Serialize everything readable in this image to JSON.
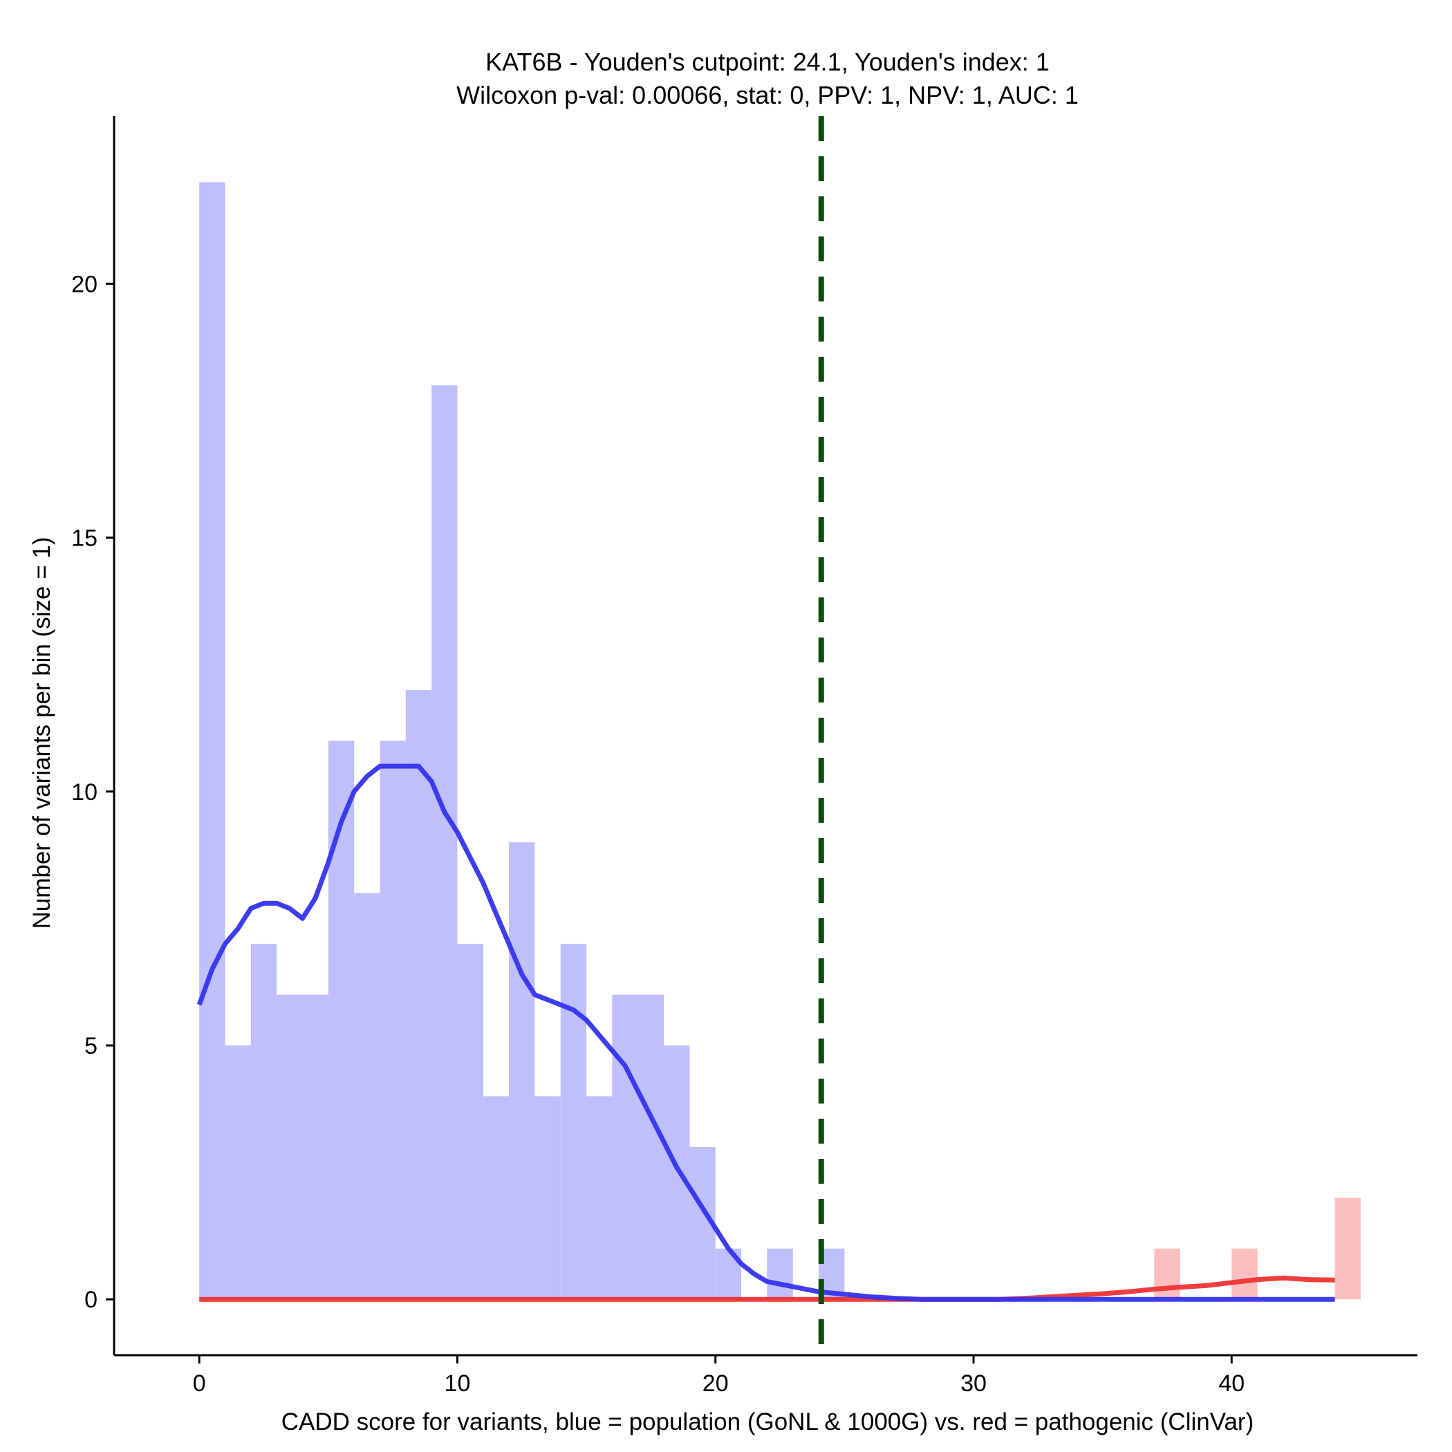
{
  "chart_data": {
    "type": "bar",
    "title": "KAT6B - Youden's cutpoint: 24.1, Youden's index: 1",
    "subtitle": "Wilcoxon p-val: 0.00066, stat: 0, PPV: 1, NPV: 1, AUC: 1",
    "xlabel": "CADD score for variants, blue = population (GoNL & 1000G) vs. red = pathogenic (ClinVar)",
    "ylabel": "Number of variants per bin (size = 1)",
    "xlim": [
      -3.3,
      47.2
    ],
    "ylim": [
      -1.1,
      23.3
    ],
    "x_ticks": [
      0,
      10,
      20,
      30,
      40
    ],
    "y_ticks": [
      0,
      5,
      10,
      15,
      20
    ],
    "bin_width": 1,
    "grid": false,
    "legend": "none",
    "cutpoint": 24.1,
    "series": [
      {
        "name": "population (GoNL & 1000G)",
        "color": "#bfbffc",
        "bin_starts": [
          0,
          1,
          2,
          3,
          4,
          5,
          6,
          7,
          8,
          9,
          10,
          11,
          12,
          13,
          14,
          15,
          16,
          17,
          18,
          19,
          20,
          21,
          22,
          23,
          24
        ],
        "values": [
          22,
          5,
          7,
          6,
          6,
          11,
          8,
          11,
          12,
          18,
          7,
          4,
          9,
          4,
          7,
          4,
          6,
          6,
          5,
          3,
          1,
          0,
          1,
          0,
          1
        ]
      },
      {
        "name": "pathogenic (ClinVar)",
        "color": "#fcbfbf",
        "bin_starts": [
          37,
          40,
          44
        ],
        "values": [
          1,
          1,
          2
        ]
      }
    ],
    "density_lines": [
      {
        "name": "population (GoNL & 1000G)",
        "color": "#3333ee",
        "x": [
          0,
          0.5,
          1,
          1.5,
          2,
          2.5,
          3,
          3.5,
          4,
          4.5,
          5,
          5.5,
          6,
          6.5,
          7,
          7.5,
          8,
          8.5,
          9,
          9.5,
          10,
          10.5,
          11,
          11.5,
          12,
          12.5,
          13,
          13.5,
          14,
          14.5,
          15,
          15.5,
          16,
          16.5,
          17,
          17.5,
          18,
          18.5,
          19,
          19.5,
          20,
          20.5,
          21,
          21.5,
          22,
          22.5,
          23,
          24,
          25,
          26,
          27,
          28,
          30,
          32,
          34,
          36,
          38,
          40,
          42,
          44
        ],
        "y": [
          5.8,
          6.5,
          7.0,
          7.3,
          7.7,
          7.8,
          7.8,
          7.7,
          7.5,
          7.9,
          8.6,
          9.4,
          10.0,
          10.3,
          10.5,
          10.5,
          10.5,
          10.5,
          10.2,
          9.6,
          9.2,
          8.7,
          8.2,
          7.6,
          7.0,
          6.4,
          6.0,
          5.9,
          5.8,
          5.7,
          5.5,
          5.2,
          4.9,
          4.6,
          4.1,
          3.6,
          3.1,
          2.6,
          2.2,
          1.8,
          1.4,
          1.0,
          0.7,
          0.5,
          0.35,
          0.3,
          0.25,
          0.15,
          0.1,
          0.05,
          0.02,
          0.0,
          0.0,
          0.0,
          0.0,
          0.0,
          0.0,
          0.0,
          0.0,
          0.0
        ]
      },
      {
        "name": "pathogenic (ClinVar)",
        "color": "#ee3333",
        "x": [
          0,
          5,
          10,
          15,
          20,
          25,
          28,
          30,
          31,
          32,
          33,
          34,
          35,
          36,
          37,
          38,
          39,
          40,
          41,
          42,
          43,
          44
        ],
        "y": [
          0,
          0,
          0,
          0,
          0,
          0,
          0,
          0,
          0,
          0.02,
          0.05,
          0.08,
          0.11,
          0.15,
          0.2,
          0.24,
          0.27,
          0.33,
          0.39,
          0.42,
          0.39,
          0.38
        ]
      }
    ]
  }
}
